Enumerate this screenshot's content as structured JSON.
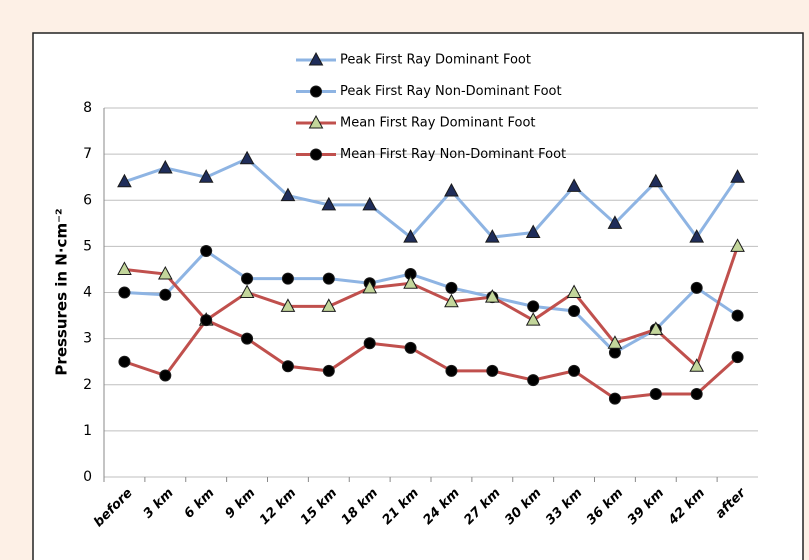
{
  "chart_data": {
    "type": "line",
    "y_label": "Pressures in N·cm⁻²",
    "categories": [
      "before",
      "3 km",
      "6 km",
      "9 km",
      "12 km",
      "15 km",
      "18 km",
      "21 km",
      "24 km",
      "27 km",
      "30 km",
      "33 km",
      "36 km",
      "39 km",
      "42 km",
      "after"
    ],
    "series": [
      {
        "name": "Peak First Ray Dominant Foot",
        "color": "#8eb4e3",
        "marker": "triangle",
        "marker_color": "#1f2d5a",
        "values": [
          6.4,
          6.7,
          6.5,
          6.9,
          6.1,
          5.9,
          5.9,
          5.2,
          6.2,
          5.2,
          5.3,
          6.3,
          5.5,
          6.4,
          5.2,
          6.5
        ]
      },
      {
        "name": "Peak First Ray Non-Dominant Foot",
        "color": "#8eb4e3",
        "marker": "circle",
        "marker_color": "#000000",
        "values": [
          4.0,
          3.95,
          4.9,
          4.3,
          4.3,
          4.3,
          4.2,
          4.4,
          4.1,
          3.9,
          3.7,
          3.6,
          2.7,
          3.2,
          4.1,
          3.5
        ]
      },
      {
        "name": "Mean First Ray Dominant Foot",
        "color": "#c0504d",
        "marker": "triangle",
        "marker_color": "#c3d69b",
        "values": [
          4.5,
          4.4,
          3.4,
          4.0,
          3.7,
          3.7,
          4.1,
          4.2,
          3.8,
          3.9,
          3.4,
          4.0,
          2.9,
          3.2,
          2.4,
          5.0
        ]
      },
      {
        "name": "Mean First Ray Non-Dominant Foot",
        "color": "#c0504d",
        "marker": "circle",
        "marker_color": "#000000",
        "values": [
          2.5,
          2.2,
          3.4,
          3.0,
          2.4,
          2.3,
          2.9,
          2.8,
          2.3,
          2.3,
          2.1,
          2.3,
          1.7,
          1.8,
          1.8,
          2.6
        ]
      }
    ],
    "ylim": [
      0,
      8
    ],
    "yticks": [
      0,
      1,
      2,
      3,
      4,
      5,
      6,
      7,
      8
    ],
    "grid": true
  }
}
